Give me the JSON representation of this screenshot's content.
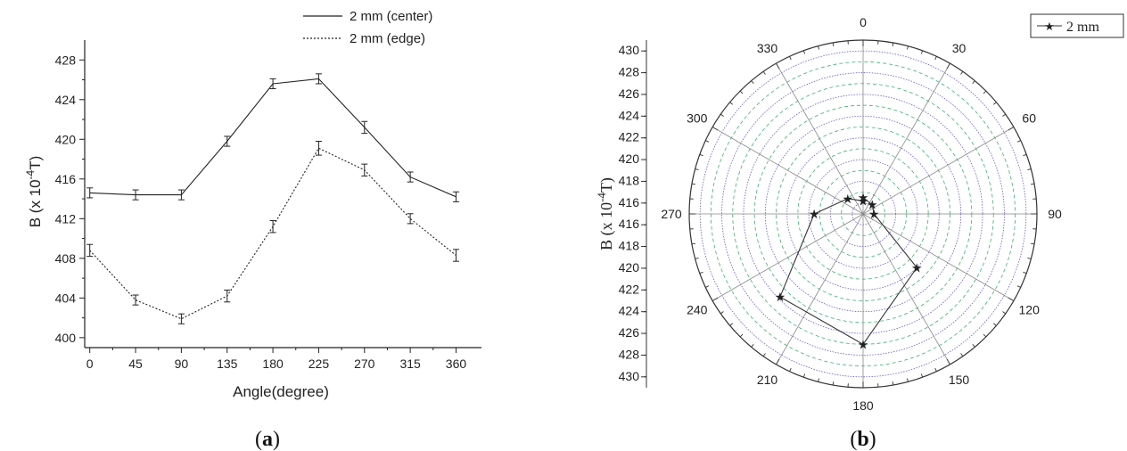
{
  "panels": [
    {
      "label": "(a)",
      "label_bold": "a"
    },
    {
      "label": "(b)",
      "label_bold": "b"
    }
  ],
  "chart_data": [
    {
      "type": "line",
      "xlabel": "Angle(degree)",
      "ylabel": "B (x 10-4T)",
      "ylabel_parts": {
        "base": "B (x 10",
        "sup": "-4",
        "tail": "T)"
      },
      "x": [
        0,
        45,
        90,
        135,
        180,
        225,
        270,
        315,
        360
      ],
      "xticks": [
        "0",
        "45",
        "90",
        "135",
        "180",
        "225",
        "270",
        "315",
        "360"
      ],
      "xlim": [
        -5,
        385
      ],
      "ylim": [
        399,
        430
      ],
      "yticks": [
        "400",
        "404",
        "408",
        "412",
        "416",
        "420",
        "424",
        "428"
      ],
      "grid": false,
      "legend_position": "top-right",
      "series": [
        {
          "name": "2 mm (center)",
          "style": "solid",
          "values": [
            414.6,
            414.4,
            414.4,
            419.8,
            425.6,
            426.1,
            421.2,
            416.2,
            414.2
          ],
          "error": [
            0.5,
            0.5,
            0.5,
            0.5,
            0.5,
            0.5,
            0.6,
            0.5,
            0.5
          ]
        },
        {
          "name": "2 mm (edge)",
          "style": "dotted",
          "values": [
            408.8,
            403.8,
            401.9,
            404.2,
            411.2,
            419.1,
            416.9,
            412.0,
            408.3
          ],
          "error": [
            0.6,
            0.5,
            0.5,
            0.6,
            0.6,
            0.7,
            0.6,
            0.5,
            0.6
          ]
        }
      ]
    },
    {
      "type": "polar",
      "ylabel": "B (x 10-4T)",
      "ylabel_parts": {
        "base": "B (x 10",
        "sup": "-4",
        "tail": "T)"
      },
      "angular_ticks": [
        "0",
        "30",
        "60",
        "90",
        "120",
        "150",
        "180",
        "210",
        "240",
        "270",
        "300",
        "330"
      ],
      "radial_range": [
        415,
        431
      ],
      "radial_ticks_upper": [
        "430",
        "428",
        "426",
        "424",
        "422",
        "420",
        "418",
        "416"
      ],
      "radial_ticks_lower": [
        "416",
        "418",
        "420",
        "422",
        "424",
        "426",
        "428",
        "430"
      ],
      "grid": true,
      "legend_position": "top-right",
      "series": [
        {
          "name": "2 mm",
          "angles": [
            0,
            45,
            90,
            135,
            180,
            225,
            270,
            315,
            360
          ],
          "values": [
            416.5,
            416.2,
            416.0,
            422.0,
            427.0,
            425.8,
            419.5,
            417.0,
            416.2
          ]
        }
      ]
    }
  ]
}
